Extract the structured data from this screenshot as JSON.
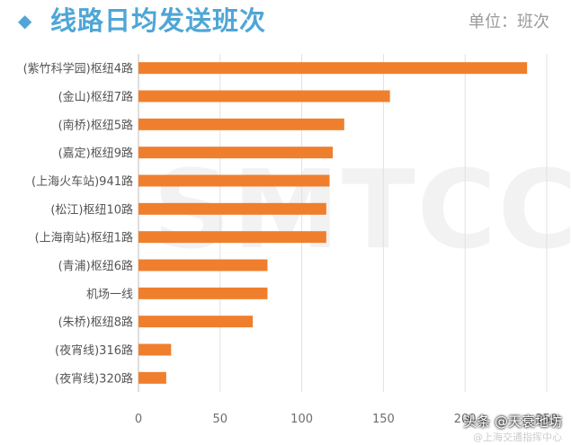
{
  "header": {
    "icon": "diamond-icon",
    "title": "线路日均发送班次",
    "unit": "单位：班次"
  },
  "watermark": "SMTCC",
  "credit": {
    "main": "头条 @天衰地坊",
    "sub": "@上海交通指挥中心"
  },
  "colors": {
    "bar": "#ef7f2d",
    "title": "#4fa6d6",
    "grid": "#e1e1e1"
  },
  "chart_data": {
    "type": "bar",
    "orientation": "horizontal",
    "categories": [
      "(紫竹科学园)枢纽4路",
      "(金山)枢纽7路",
      "(南桥)枢纽5路",
      "(嘉定)枢纽9路",
      "(上海火车站)941路",
      "(松江)枢纽10路",
      "(上海南站)枢纽1路",
      "(青浦)枢纽6路",
      "机场一线",
      "(朱桥)枢纽8路",
      "(夜宵线)316路",
      "(夜宵线)320路"
    ],
    "values": [
      238,
      154,
      126,
      119,
      117,
      115,
      115,
      79,
      79,
      70,
      20,
      17
    ],
    "xlim": [
      0,
      250
    ],
    "ticks": [
      "0",
      "50",
      "100",
      "150",
      "200",
      "250"
    ],
    "tick_values": [
      0,
      50,
      100,
      150,
      200,
      250
    ],
    "grid": true
  }
}
